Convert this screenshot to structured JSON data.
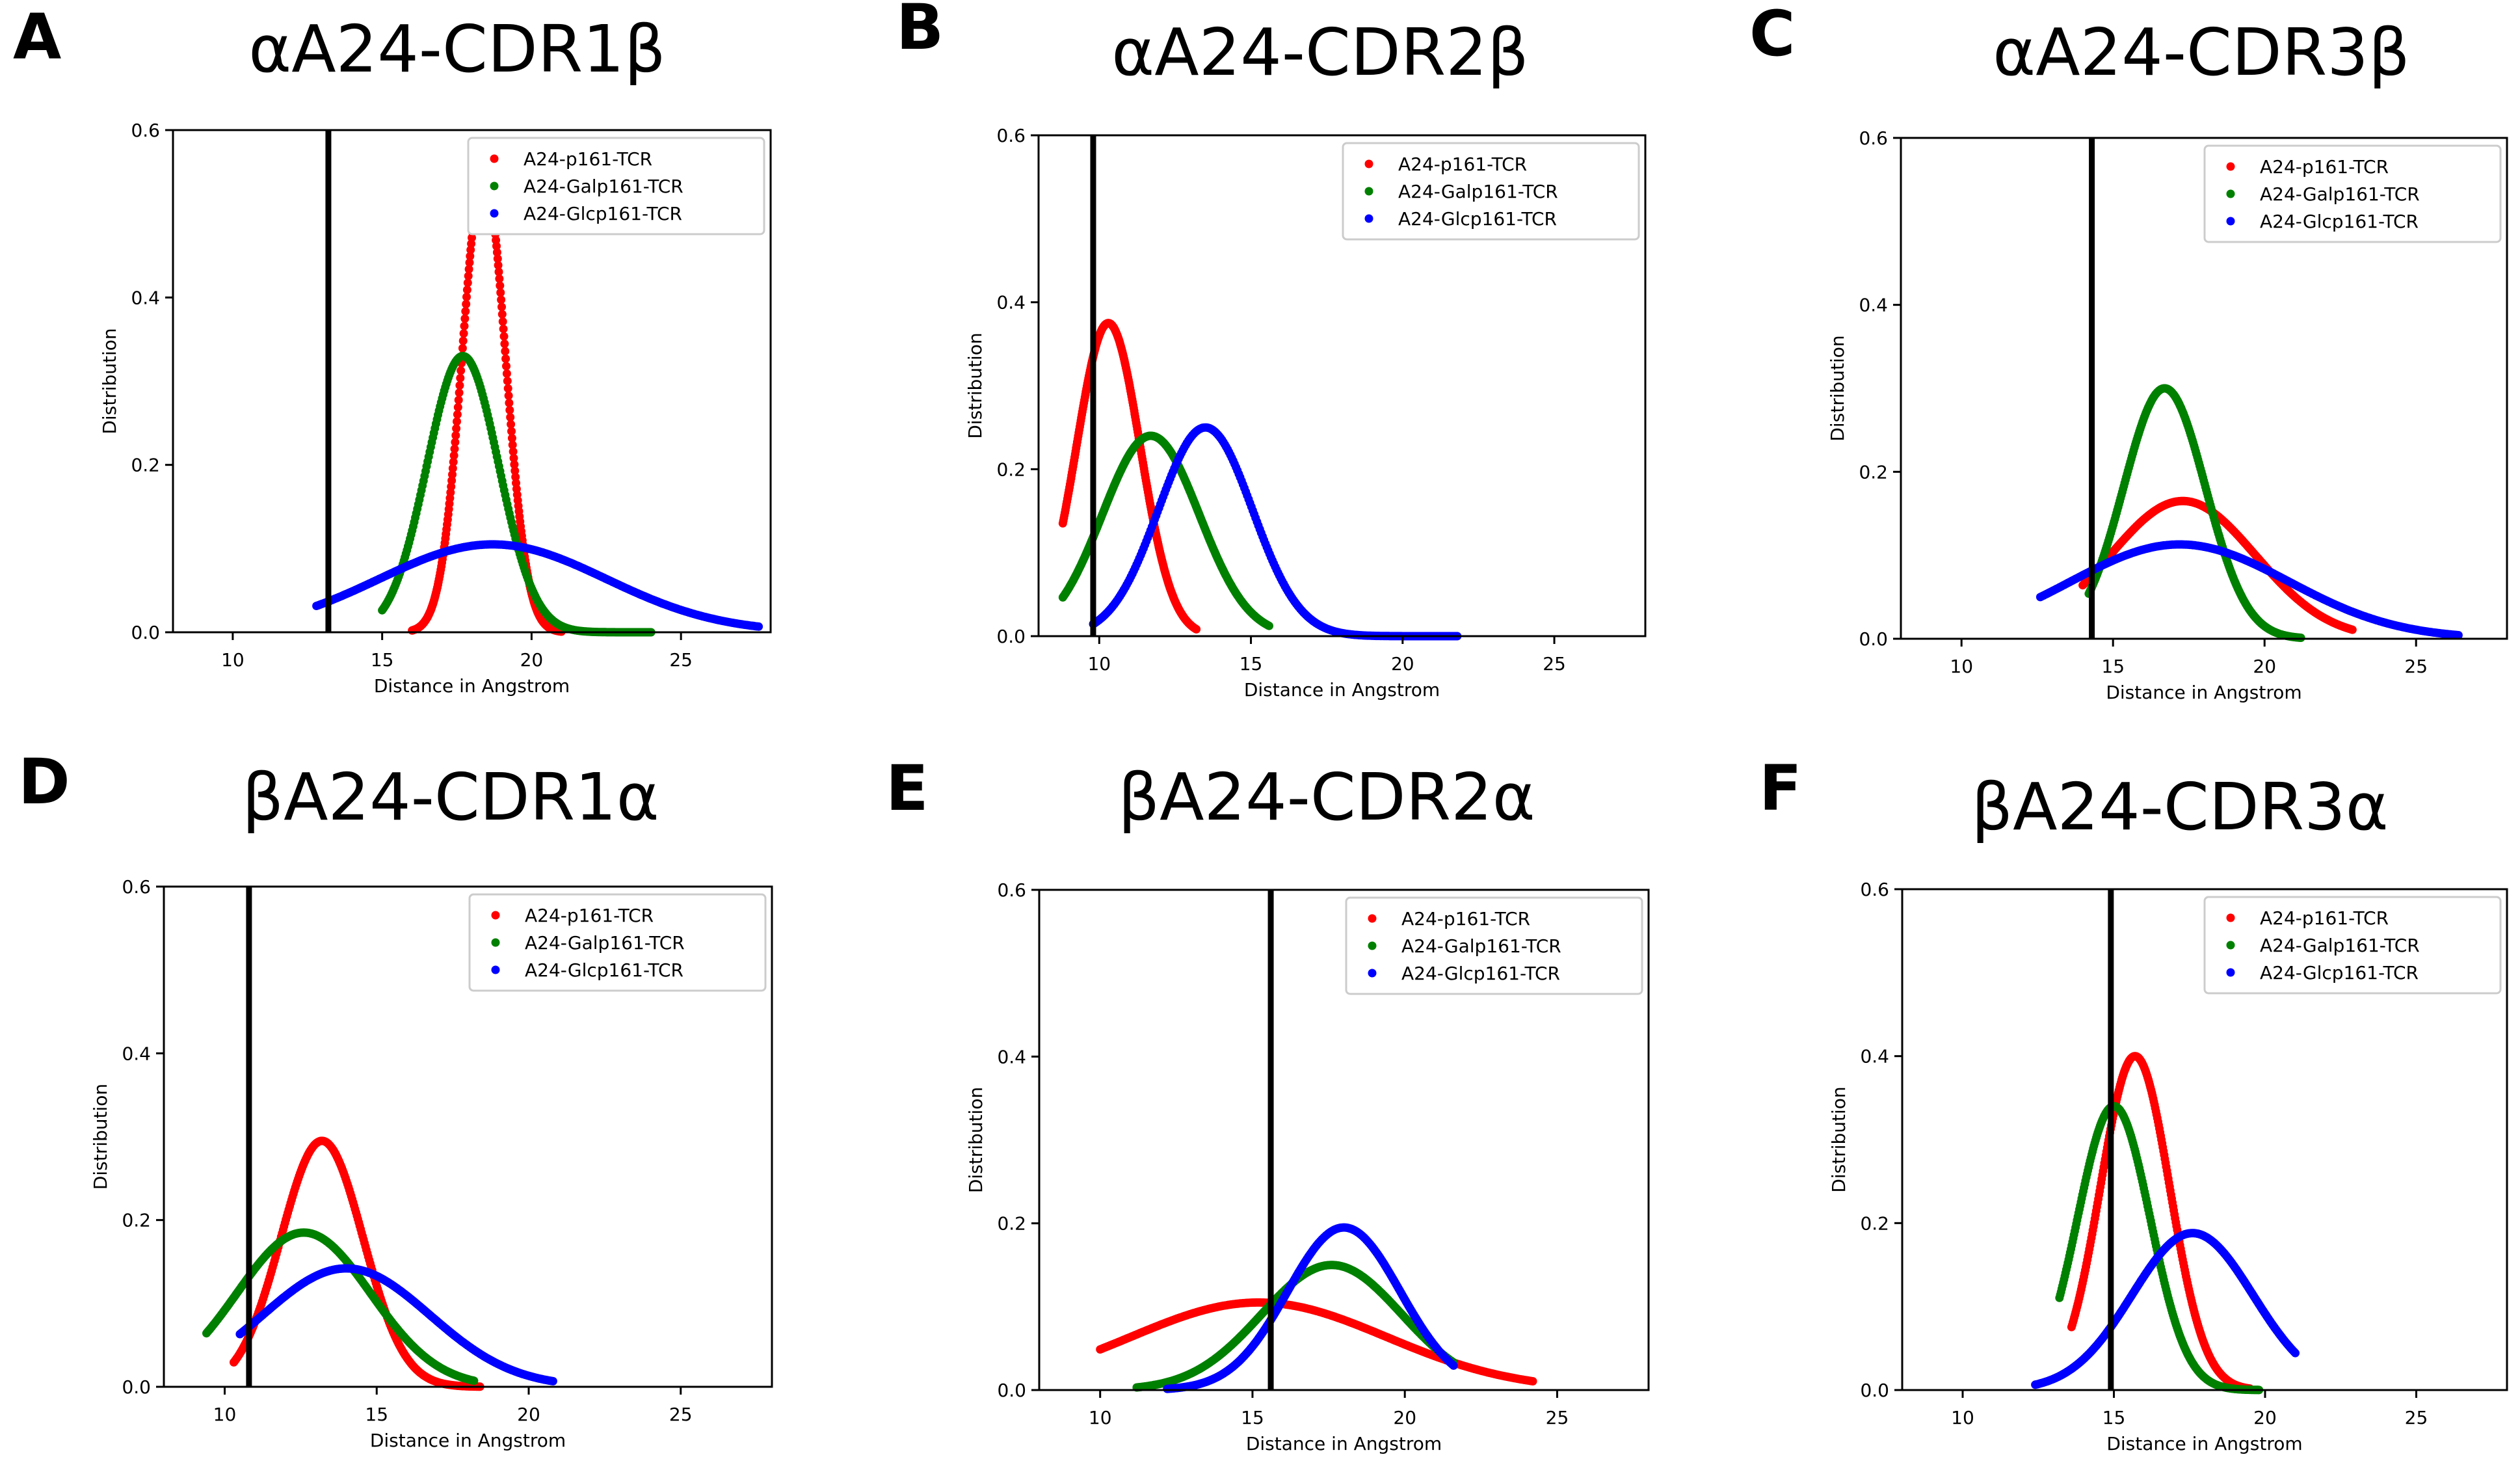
{
  "figure": {
    "colors": {
      "red": "#ff0000",
      "green": "#008000",
      "blue": "#0000ff",
      "axis": "#000000"
    },
    "legend_entries": [
      "A24-p161-TCR",
      "A24-Galp161-TCR",
      "A24-Glcp161-TCR"
    ]
  },
  "chart_data": [
    {
      "panel_letter": "A",
      "type": "scatter",
      "title": "αA24-CDR1β",
      "xlabel": "Distance in Angstrom",
      "ylabel": "Distribution",
      "xlim": [
        8,
        28
      ],
      "ylim": [
        0,
        0.6
      ],
      "xticks": [
        "10",
        "15",
        "20",
        "25"
      ],
      "yticks": [
        "0.0",
        "0.2",
        "0.4",
        "0.6"
      ],
      "vline": 13.2,
      "legend_position": "top-right",
      "series": [
        {
          "name": "A24-p161-TCR",
          "color": "#ff0000",
          "mu": 18.4,
          "peak": 0.55,
          "sigma": 0.72,
          "range": [
            16.0,
            21.0
          ]
        },
        {
          "name": "A24-Galp161-TCR",
          "color": "#008000",
          "mu": 17.7,
          "peak": 0.33,
          "sigma": 1.2,
          "range": [
            15.0,
            24.0
          ]
        },
        {
          "name": "A24-Glcp161-TCR",
          "color": "#0000ff",
          "mu": 18.7,
          "peak": 0.105,
          "sigma": 3.8,
          "range": [
            12.8,
            27.6
          ]
        }
      ]
    },
    {
      "panel_letter": "B",
      "type": "scatter",
      "title": "αA24-CDR2β",
      "xlabel": "Distance in Angstrom",
      "ylabel": "Distribution",
      "xlim": [
        8,
        28
      ],
      "ylim": [
        0,
        0.6
      ],
      "xticks": [
        "10",
        "15",
        "20",
        "25"
      ],
      "yticks": [
        "0.0",
        "0.2",
        "0.4",
        "0.6"
      ],
      "vline": 9.8,
      "legend_position": "top-right",
      "series": [
        {
          "name": "A24-p161-TCR",
          "color": "#ff0000",
          "mu": 10.3,
          "peak": 0.375,
          "sigma": 1.05,
          "range": [
            8.8,
            13.2
          ]
        },
        {
          "name": "A24-Galp161-TCR",
          "color": "#008000",
          "mu": 11.7,
          "peak": 0.24,
          "sigma": 1.6,
          "range": [
            8.8,
            15.6
          ]
        },
        {
          "name": "A24-Glcp161-TCR",
          "color": "#0000ff",
          "mu": 13.5,
          "peak": 0.25,
          "sigma": 1.55,
          "range": [
            9.8,
            21.8
          ]
        }
      ]
    },
    {
      "panel_letter": "C",
      "type": "scatter",
      "title": "αA24-CDR3β",
      "xlabel": "Distance in Angstrom",
      "ylabel": "Distribution",
      "xlim": [
        8,
        28
      ],
      "ylim": [
        0,
        0.6
      ],
      "xticks": [
        "10",
        "15",
        "20",
        "25"
      ],
      "yticks": [
        "0.0",
        "0.2",
        "0.4",
        "0.6"
      ],
      "vline": 14.3,
      "legend_position": "top-right",
      "series": [
        {
          "name": "A24-p161-TCR",
          "color": "#ff0000",
          "mu": 17.3,
          "peak": 0.165,
          "sigma": 2.4,
          "range": [
            14.0,
            22.9
          ]
        },
        {
          "name": "A24-Galp161-TCR",
          "color": "#008000",
          "mu": 16.7,
          "peak": 0.3,
          "sigma": 1.35,
          "range": [
            14.2,
            21.2
          ]
        },
        {
          "name": "A24-Glcp161-TCR",
          "color": "#0000ff",
          "mu": 17.2,
          "peak": 0.113,
          "sigma": 3.6,
          "range": [
            12.6,
            26.4
          ]
        }
      ]
    },
    {
      "panel_letter": "D",
      "type": "scatter",
      "title": "βA24-CDR1α",
      "xlabel": "Distance in Angstrom",
      "ylabel": "Distribution",
      "xlim": [
        8,
        28
      ],
      "ylim": [
        0,
        0.6
      ],
      "xticks": [
        "10",
        "15",
        "20",
        "25"
      ],
      "yticks": [
        "0.0",
        "0.2",
        "0.4",
        "0.6"
      ],
      "vline": 10.8,
      "legend_position": "top-right",
      "series": [
        {
          "name": "A24-p161-TCR",
          "color": "#ff0000",
          "mu": 13.2,
          "peak": 0.295,
          "sigma": 1.35,
          "range": [
            10.3,
            18.4
          ]
        },
        {
          "name": "A24-Galp161-TCR",
          "color": "#008000",
          "mu": 12.6,
          "peak": 0.185,
          "sigma": 2.2,
          "range": [
            9.4,
            18.2
          ]
        },
        {
          "name": "A24-Glcp161-TCR",
          "color": "#0000ff",
          "mu": 14.0,
          "peak": 0.142,
          "sigma": 2.75,
          "range": [
            10.5,
            20.8
          ]
        }
      ]
    },
    {
      "panel_letter": "E",
      "type": "scatter",
      "title": "βA24-CDR2α",
      "xlabel": "Distance in Angstrom",
      "ylabel": "Distribution",
      "xlim": [
        8,
        28
      ],
      "ylim": [
        0,
        0.6
      ],
      "xticks": [
        "10",
        "15",
        "20",
        "25"
      ],
      "yticks": [
        "0.0",
        "0.2",
        "0.4",
        "0.6"
      ],
      "vline": 15.6,
      "legend_position": "top-right",
      "series": [
        {
          "name": "A24-p161-TCR",
          "color": "#ff0000",
          "mu": 15.2,
          "peak": 0.105,
          "sigma": 4.2,
          "range": [
            10.0,
            24.2
          ]
        },
        {
          "name": "A24-Galp161-TCR",
          "color": "#008000",
          "mu": 17.6,
          "peak": 0.15,
          "sigma": 2.3,
          "range": [
            11.2,
            21.6
          ]
        },
        {
          "name": "A24-Glcp161-TCR",
          "color": "#0000ff",
          "mu": 18.0,
          "peak": 0.195,
          "sigma": 1.85,
          "range": [
            12.2,
            21.6
          ]
        }
      ]
    },
    {
      "panel_letter": "F",
      "type": "scatter",
      "title": "βA24-CDR3α",
      "xlabel": "Distance in Angstrom",
      "ylabel": "Distribution",
      "xlim": [
        8,
        28
      ],
      "ylim": [
        0,
        0.6
      ],
      "xticks": [
        "10",
        "15",
        "20",
        "25"
      ],
      "yticks": [
        "0.0",
        "0.2",
        "0.4",
        "0.6"
      ],
      "vline": 14.9,
      "legend_position": "top-right",
      "series": [
        {
          "name": "A24-p161-TCR",
          "color": "#ff0000",
          "mu": 15.7,
          "peak": 0.4,
          "sigma": 1.15,
          "range": [
            13.6,
            19.5
          ]
        },
        {
          "name": "A24-Galp161-TCR",
          "color": "#008000",
          "mu": 15.0,
          "peak": 0.34,
          "sigma": 1.2,
          "range": [
            13.2,
            19.8
          ]
        },
        {
          "name": "A24-Glcp161-TCR",
          "color": "#0000ff",
          "mu": 17.6,
          "peak": 0.188,
          "sigma": 2.0,
          "range": [
            12.4,
            21.0
          ]
        }
      ]
    }
  ]
}
